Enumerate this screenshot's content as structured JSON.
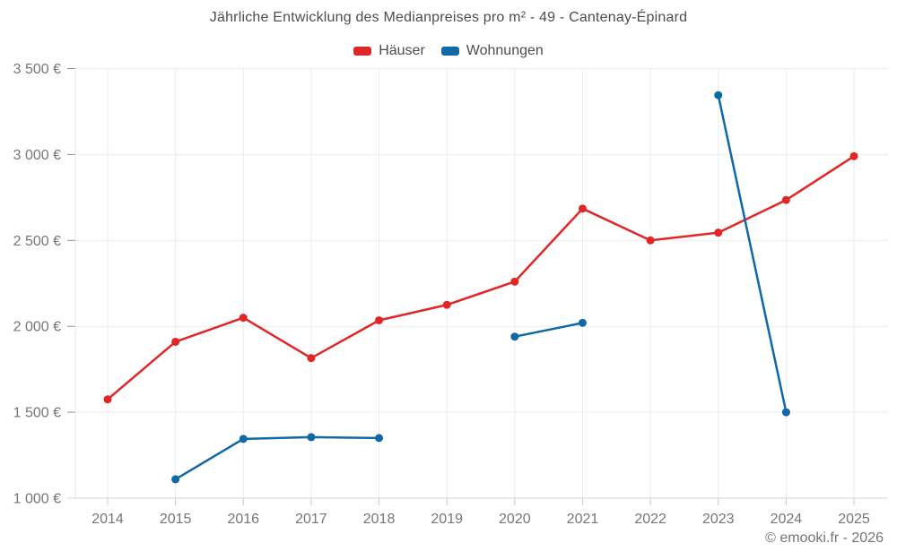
{
  "title": "Jährliche Entwicklung des Medianpreises pro m² - 49 - Cantenay-Épinard",
  "footer": "© emooki.fr - 2026",
  "legend": [
    {
      "label": "Häuser",
      "slug": "haeuser",
      "color": "#e12626"
    },
    {
      "label": "Wohnungen",
      "slug": "wohnungen",
      "color": "#1068a7"
    }
  ],
  "chart_data": {
    "type": "line",
    "title": "Jährliche Entwicklung des Medianpreises pro m² - 49 - Cantenay-Épinard",
    "x": [
      2014,
      2015,
      2016,
      2017,
      2018,
      2019,
      2020,
      2021,
      2022,
      2023,
      2024,
      2025
    ],
    "series": [
      {
        "name": "Häuser",
        "slug": "haeuser",
        "color": "#e12626",
        "values": [
          1575,
          1910,
          2050,
          1815,
          2035,
          2125,
          2260,
          2685,
          2500,
          2545,
          2735,
          2990
        ]
      },
      {
        "name": "Wohnungen",
        "slug": "wohnungen",
        "color": "#1068a7",
        "values": [
          null,
          1110,
          1345,
          1355,
          1350,
          null,
          1940,
          2020,
          null,
          3345,
          1500,
          null
        ]
      }
    ],
    "xlabel": "",
    "ylabel": "",
    "yticks": [
      1000,
      1500,
      2000,
      2500,
      3000,
      3500
    ],
    "ytick_labels": [
      "1 000 €",
      "1 500 €",
      "2 000 €",
      "2 500 €",
      "3 000 €",
      "3 500 €"
    ],
    "ylim": [
      1000,
      3600
    ],
    "grid": true,
    "legend_position": "top",
    "colors": {
      "grid": "#ececec",
      "axis_line": "#d6d6d6",
      "y_axis_line": "#e5e5e5",
      "y_tick": "#8f8f8f",
      "x_tick": "#c9c9c9",
      "axis_text": "#757575",
      "title_text": "#4d4d4d"
    }
  }
}
